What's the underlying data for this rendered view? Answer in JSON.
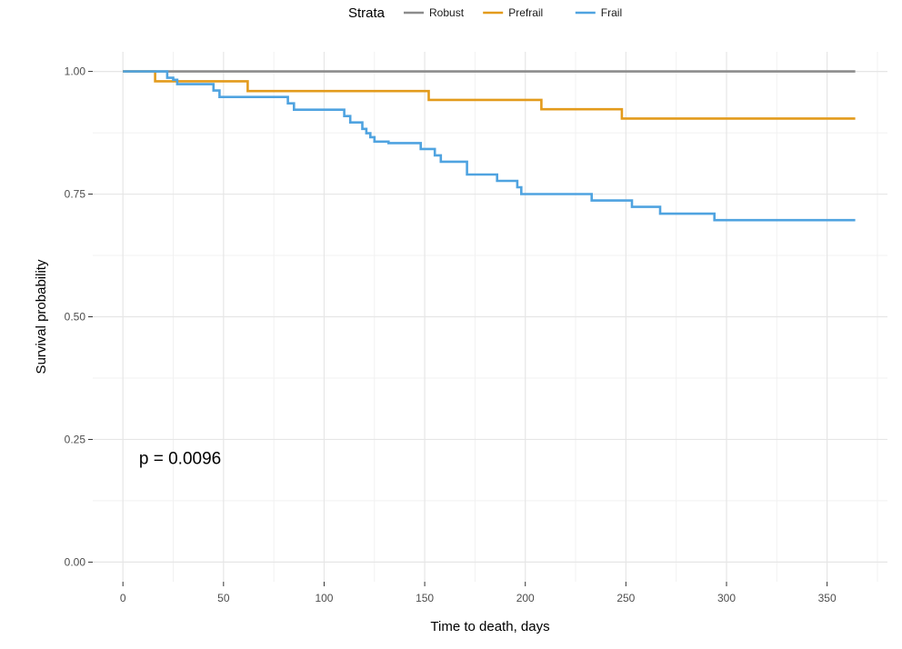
{
  "chart_data": {
    "type": "line",
    "subtype": "step",
    "legend": {
      "title": "Strata",
      "position": "top"
    },
    "xlabel": "Time to death, days",
    "ylabel": "Survival probability",
    "xlim": [
      -15,
      380
    ],
    "ylim": [
      -0.04,
      1.04
    ],
    "xticks": [
      0,
      50,
      100,
      150,
      200,
      250,
      300,
      350
    ],
    "xtick_labels": [
      "0",
      "50",
      "100",
      "150",
      "200",
      "250",
      "300",
      "350"
    ],
    "yticks": [
      0,
      0.25,
      0.5,
      0.75,
      1.0
    ],
    "ytick_labels": [
      "0.00",
      "0.25",
      "0.50",
      "0.75",
      "1.00"
    ],
    "grid": true,
    "annotation": {
      "text": "p = 0.0096",
      "x": 8,
      "y": 0.2
    },
    "series": [
      {
        "name": "Robust",
        "color": "#8c8c8c",
        "x": [
          0,
          364
        ],
        "y": [
          1.0,
          1.0
        ]
      },
      {
        "name": "Prefrail",
        "color": "#e39b1c",
        "x": [
          0,
          16,
          62,
          152,
          208,
          248,
          364
        ],
        "y": [
          1.0,
          0.98,
          0.96,
          0.942,
          0.923,
          0.904,
          0.904
        ]
      },
      {
        "name": "Frail",
        "color": "#4fa3e0",
        "x": [
          0,
          22,
          25,
          27,
          45,
          48,
          82,
          85,
          110,
          113,
          119,
          121,
          123,
          125,
          132,
          148,
          155,
          158,
          171,
          186,
          196,
          198,
          233,
          253,
          267,
          294,
          364
        ],
        "y": [
          1.0,
          0.987,
          0.983,
          0.974,
          0.961,
          0.948,
          0.935,
          0.922,
          0.909,
          0.896,
          0.883,
          0.874,
          0.866,
          0.857,
          0.854,
          0.842,
          0.829,
          0.816,
          0.79,
          0.777,
          0.764,
          0.75,
          0.737,
          0.724,
          0.71,
          0.697,
          0.697
        ]
      }
    ]
  }
}
